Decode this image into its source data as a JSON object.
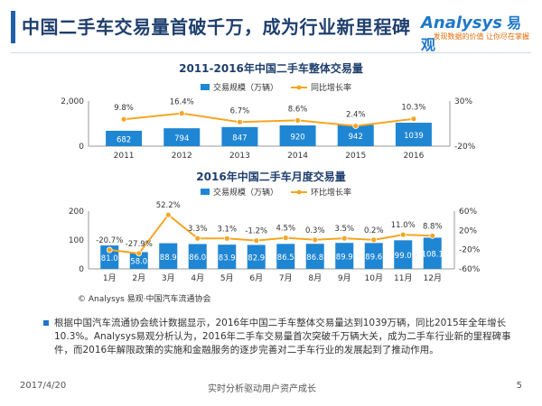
{
  "page": {
    "title": "中国二手车交易量首破千万，成为行业新里程碑",
    "logo": {
      "brand": "Analysys",
      "brand_cn": "易观",
      "slogan": "发现数据的价值 让你尽在掌握"
    },
    "source": "© Analysys 易观·中国汽车流通协会",
    "bullet_text": "根据中国汽车流通协会统计数据显示，2016年中国二手车整体交易量达到1039万辆，同比2015年全年增长10.3%。Analysys易观分析认为，2016年二手车交易量首次突破千万辆大关，成为二手车行业新的里程碑事件，而2016年解限政策的实施和金融服务的逐步完善对二手车行业的发展起到了推动作用。",
    "footer_date": "2017/4/20",
    "footer_mid": "实时分析驱动用户资产成长",
    "footer_page": "5",
    "colors": {
      "bar": "#1f86d4",
      "bar_label": "#1f86d4",
      "line": "#f5a623",
      "title": "#1f3f6e"
    }
  },
  "chart_data": [
    {
      "type": "bar",
      "title": "2011-2016年中国二手车整体交易量",
      "legend": [
        "交易规模（万辆）",
        "同比增长率"
      ],
      "legend_position": "top",
      "categories": [
        "2011",
        "2012",
        "2013",
        "2014",
        "2015",
        "2016"
      ],
      "series": [
        {
          "name": "交易规模（万辆）",
          "values": [
            682,
            794,
            847,
            920,
            942,
            1039
          ],
          "axis": "left"
        },
        {
          "name": "同比增长率",
          "values": [
            9.8,
            16.4,
            6.7,
            8.6,
            2.4,
            10.3
          ],
          "labels": [
            "9.8%",
            "16.4%",
            "6.7%",
            "8.6%",
            "2.4%",
            "10.3%"
          ],
          "axis": "right",
          "style": "line"
        }
      ],
      "ylim": [
        0,
        2000
      ],
      "yticks": [
        "2,000",
        "0"
      ],
      "y2lim": [
        -20,
        30
      ],
      "y2ticks": [
        "30%",
        "-20%"
      ],
      "grid": false
    },
    {
      "type": "bar",
      "title": "2016年中国二手车月度交易量",
      "legend": [
        "交易规模（万辆）",
        "环比增长率"
      ],
      "legend_position": "top",
      "categories": [
        "1月",
        "2月",
        "3月",
        "4月",
        "5月",
        "6月",
        "7月",
        "8月",
        "9月",
        "10月",
        "11月",
        "12月"
      ],
      "series": [
        {
          "name": "交易规模（万辆）",
          "values": [
            81.0,
            58.0,
            88.9,
            86.0,
            83.9,
            82.9,
            86.5,
            86.8,
            89.9,
            89.6,
            99.0,
            108.1
          ],
          "labels": [
            "81.0",
            "58.0",
            "88.9",
            "86.0",
            "83.9",
            "82.9",
            "86.5",
            "86.8",
            "89.9",
            "89.6",
            "99.0",
            "108.1"
          ],
          "axis": "left"
        },
        {
          "name": "环比增长率",
          "values": [
            -20.7,
            -27.9,
            52.2,
            3.3,
            3.1,
            -1.2,
            4.5,
            0.3,
            3.5,
            0.2,
            11.0,
            8.8
          ],
          "labels": [
            "-20.7%",
            "-27.9%",
            "52.2%",
            "3.3%",
            "3.1%",
            "-1.2%",
            "4.5%",
            "0.3%",
            "3.5%",
            "0.2%",
            "11.0%",
            "8.8%"
          ],
          "axis": "right",
          "style": "line"
        }
      ],
      "ylim": [
        0,
        200
      ],
      "yticks": [
        "200",
        "100",
        "0"
      ],
      "y2lim": [
        -60,
        60
      ],
      "y2ticks": [
        "60%",
        "20%",
        "-20%",
        "-60%"
      ],
      "grid": false
    }
  ]
}
